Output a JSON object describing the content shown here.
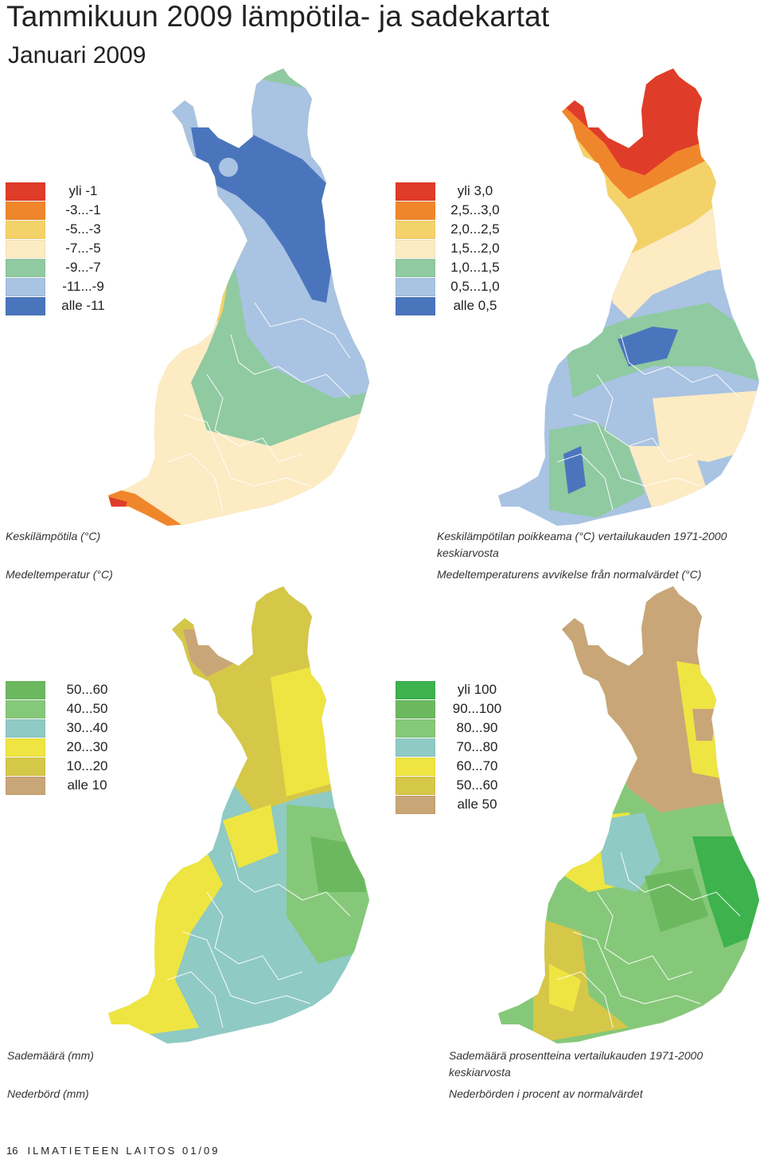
{
  "header": {
    "title": "Tammikuun  2009 lämpötila- ja sadekartat",
    "subtitle": "Januari 2009"
  },
  "panels": [
    {
      "caption_fi": "Keskilämpötila (°C)",
      "caption_sv": "Medeltemperatur (°C)",
      "legend": [
        {
          "label": "yli -1",
          "color": "#e03c2a"
        },
        {
          "label": "-3...-1",
          "color": "#f0862b"
        },
        {
          "label": "-5...-3",
          "color": "#f4d26a"
        },
        {
          "label": "-7...-5",
          "color": "#fcebc3"
        },
        {
          "label": "-9...-7",
          "color": "#8fcaa1"
        },
        {
          "label": "-11...-9",
          "color": "#a9c3e2"
        },
        {
          "label": "alle -11",
          "color": "#4a75bd"
        }
      ]
    },
    {
      "caption_fi": "Keskilämpötilan poikkeama (°C) vertailukauden 1971-2000",
      "caption_fi2": "keskiarvosta",
      "caption_sv": "Medeltemperaturens avvikelse från normalvärdet (°C)",
      "legend": [
        {
          "label": "yli 3,0",
          "color": "#e03c2a"
        },
        {
          "label": "2,5...3,0",
          "color": "#f0862b"
        },
        {
          "label": "2,0...2,5",
          "color": "#f4d26a"
        },
        {
          "label": "1,5...2,0",
          "color": "#fcebc3"
        },
        {
          "label": "1,0...1,5",
          "color": "#8fcaa1"
        },
        {
          "label": "0,5...1,0",
          "color": "#a9c3e2"
        },
        {
          "label": "alle 0,5",
          "color": "#4a75bd"
        }
      ]
    },
    {
      "caption_fi": "Sademäärä (mm)",
      "caption_sv": "Nederbörd (mm)",
      "legend": [
        {
          "label": "50...60",
          "color": "#6cb85f"
        },
        {
          "label": "40...50",
          "color": "#86c879"
        },
        {
          "label": "30...40",
          "color": "#8fcac4"
        },
        {
          "label": "20...30",
          "color": "#eee542"
        },
        {
          "label": "10...20",
          "color": "#d5c748"
        },
        {
          "label": "alle 10",
          "color": "#c9a677"
        }
      ]
    },
    {
      "caption_fi": "Sademäärä prosentteina vertailukauden 1971-2000",
      "caption_fi2": "keskiarvosta",
      "caption_sv": "Nederbörden i procent av normalvärdet",
      "legend": [
        {
          "label": "yli 100",
          "color": "#3db24d"
        },
        {
          "label": "90...100",
          "color": "#6cb85f"
        },
        {
          "label": "80...90",
          "color": "#86c879"
        },
        {
          "label": "70...80",
          "color": "#8fcac4"
        },
        {
          "label": "60...70",
          "color": "#eee542"
        },
        {
          "label": "50...60",
          "color": "#d5c748"
        },
        {
          "label": "alle 50",
          "color": "#c9a677"
        }
      ]
    }
  ],
  "footer": {
    "page_number": "16",
    "publication": "ILMATIETEEN LAITOS 01/09"
  }
}
